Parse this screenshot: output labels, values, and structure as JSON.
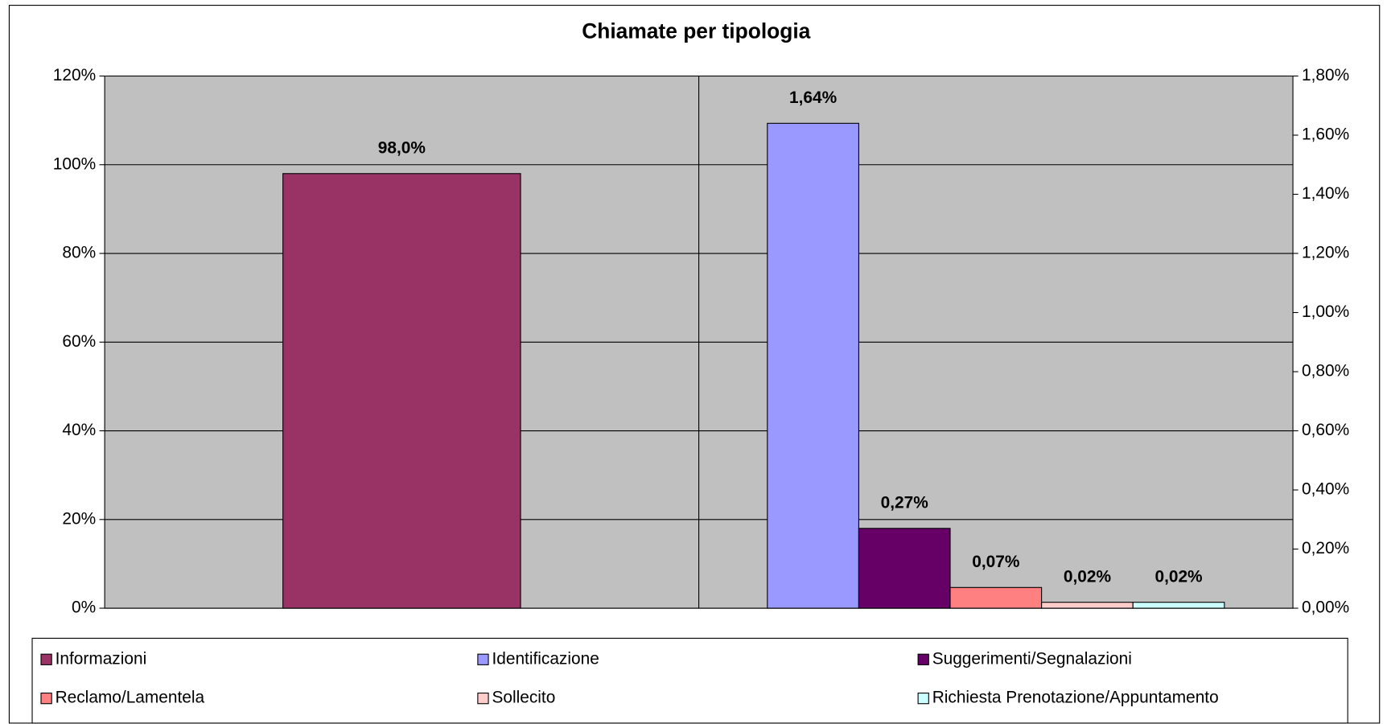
{
  "chart_data": {
    "type": "bar",
    "title": "Chiamate per tipologia",
    "categories": [
      null,
      null
    ],
    "series": [
      {
        "name": "Informazioni",
        "color": "#993366",
        "values": [
          98.0,
          null
        ],
        "value_labels": [
          "98,0%",
          null
        ]
      },
      {
        "name": "Identificazione",
        "color": "#9999ff",
        "axis": "y2",
        "values": [
          null,
          1.64
        ],
        "value_labels": [
          null,
          "1,64%"
        ]
      },
      {
        "name": "Suggerimenti/Segnalazioni",
        "color": "#660066",
        "axis": "y2",
        "values": [
          null,
          0.27
        ],
        "value_labels": [
          null,
          "0,27%"
        ]
      },
      {
        "name": "Reclamo/Lamentela",
        "color": "#ff8080",
        "axis": "y2",
        "values": [
          null,
          0.07
        ],
        "value_labels": [
          null,
          "0,07%"
        ]
      },
      {
        "name": "Sollecito",
        "color": "#ffcccc",
        "axis": "y2",
        "values": [
          null,
          0.02
        ],
        "value_labels": [
          null,
          "0,02%"
        ]
      },
      {
        "name": "Richiesta Prenotazione/Appuntamento",
        "color": "#ccffff",
        "axis": "y2",
        "values": [
          null,
          0.02
        ],
        "value_labels": [
          null,
          "0,02%"
        ]
      }
    ],
    "ylim": [
      0,
      120
    ],
    "yticks": [
      {
        "value": 0,
        "label": "0%"
      },
      {
        "value": 20,
        "label": "20%"
      },
      {
        "value": 40,
        "label": "40%"
      },
      {
        "value": 60,
        "label": "60%"
      },
      {
        "value": 80,
        "label": "80%"
      },
      {
        "value": 100,
        "label": "100%"
      },
      {
        "value": 120,
        "label": "120%"
      }
    ],
    "y2lim": [
      0,
      1.8
    ],
    "y2ticks": [
      {
        "value": 0,
        "label": "0,00%"
      },
      {
        "value": 0.2,
        "label": "0,20%"
      },
      {
        "value": 0.4,
        "label": "0,40%"
      },
      {
        "value": 0.6,
        "label": "0,60%"
      },
      {
        "value": 0.8,
        "label": "0,80%"
      },
      {
        "value": 1.0,
        "label": "1,00%"
      },
      {
        "value": 1.2,
        "label": "1,20%"
      },
      {
        "value": 1.4,
        "label": "1,40%"
      },
      {
        "value": 1.6,
        "label": "1,60%"
      },
      {
        "value": 1.8,
        "label": "1,80%"
      }
    ],
    "grid": true,
    "plot_background": "#c0c0c0",
    "legend": "bottom"
  }
}
